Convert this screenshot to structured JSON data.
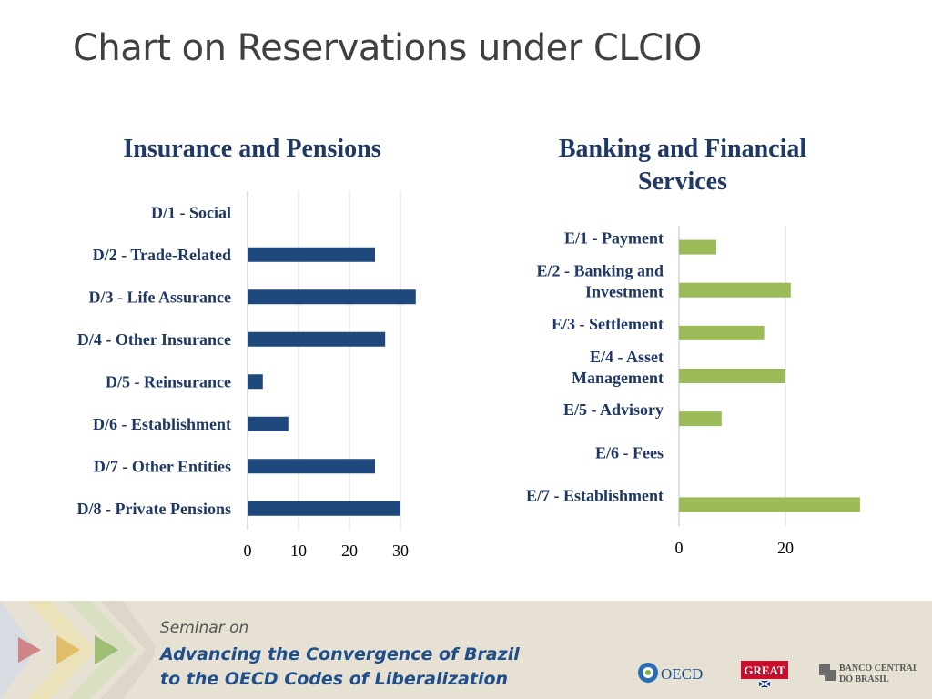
{
  "slide": {
    "title": "Chart on Reservations under CLCIO"
  },
  "chart_data": [
    {
      "type": "bar",
      "orientation": "horizontal",
      "title": "Insurance and Pensions",
      "categories": [
        "D/1 - Social",
        "D/2 - Trade-Related",
        "D/3 - Life Assurance",
        "D/4 - Other Insurance",
        "D/5 - Reinsurance",
        "D/6 - Establishment",
        "D/7 - Other Entities",
        "D/8 - Private Pensions"
      ],
      "values": [
        0,
        25,
        33,
        27,
        3,
        8,
        25,
        30
      ],
      "xlim": [
        0,
        35
      ],
      "ticks": [
        0,
        10,
        20,
        30
      ],
      "tick_labels": [
        "0",
        "10",
        "20",
        "30"
      ],
      "grid": true,
      "color": "#1f497d"
    },
    {
      "type": "bar",
      "orientation": "horizontal",
      "title": "Banking and Financial Services",
      "categories": [
        "E/1 - Payment",
        "E/2 - Banking and Investment",
        "E/3 - Settlement",
        "E/4 - Asset Management",
        "E/5 - Advisory",
        "E/6 - Fees",
        "E/7 - Establishment"
      ],
      "values": [
        7,
        21,
        16,
        20,
        8,
        0,
        34
      ],
      "xlim": [
        0,
        35
      ],
      "ticks": [
        0,
        20
      ],
      "tick_labels": [
        "0",
        "20"
      ],
      "grid": true,
      "color": "#9bbb59"
    }
  ],
  "footer": {
    "seminar": "Seminar on",
    "line1": "Advancing the Convergence of Brazil",
    "line2": "to the OECD Codes of Liberalization",
    "oecd": "OECD",
    "great": "GREAT",
    "bcb1": "BANCO CENTRAL",
    "bcb2": "DO BRASIL"
  }
}
